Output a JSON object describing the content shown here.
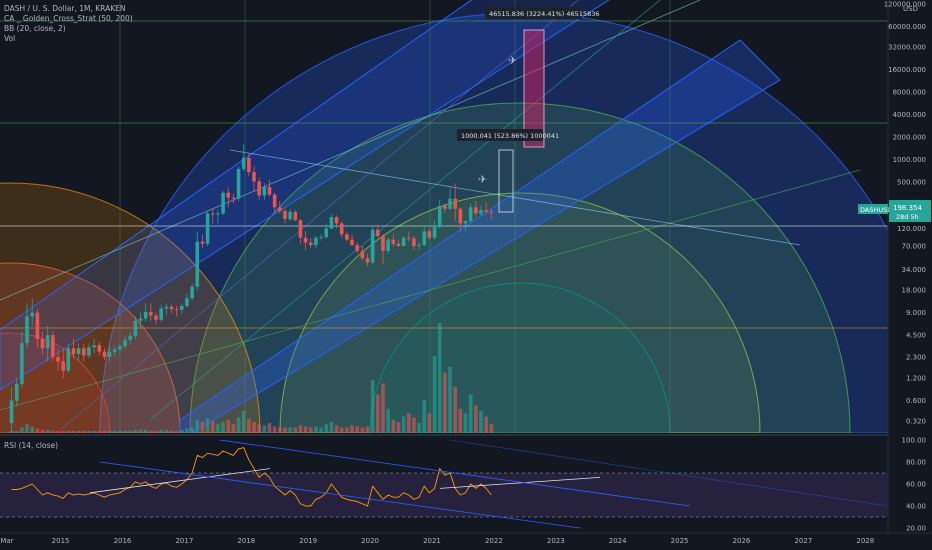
{
  "legend": {
    "symbol": "DASH / U. S. Dollar, 1M, KRAKEN",
    "indicator1": "CA _ Golden_Cross_Strat (50, 200)",
    "indicator2": "BB (20, close, 2)",
    "indicator3": "Vol",
    "rsi": "RSI (14, close)"
  },
  "currency_label": "USD",
  "price_tag": {
    "symbol": "DASHUSD",
    "price": "198.354",
    "countdown": "28d 5h"
  },
  "annotations": {
    "target1": "1000.041 (523.86%) 1000041",
    "target2": "46515.836 (3224.41%) 46515836"
  },
  "colors": {
    "background": "#131722",
    "up": "#26a69a",
    "down": "#ef5350",
    "fib_blue": "#2962ff",
    "fib_green": "#4caf50",
    "fib_orange": "#ff9800",
    "rsi_band": "#7e57c2",
    "target_box": "#e91e63"
  },
  "chart_data": {
    "type": "candlestick",
    "scale": "log",
    "y_ticks": [
      "120000.000",
      "60000.000",
      "32000.000",
      "16000.000",
      "8000.000",
      "4000.000",
      "2000.000",
      "1000.000",
      "500.000",
      "250.000",
      "120.000",
      "70.000",
      "34.000",
      "18.000",
      "9.000",
      "4.500",
      "2.300",
      "1.200",
      "0.600",
      "0.320"
    ],
    "x_ticks": [
      "Mar",
      "2015",
      "2016",
      "2017",
      "2018",
      "2019",
      "2020",
      "2021",
      "2022",
      "2023",
      "2024",
      "2025",
      "2026",
      "2027",
      "2028"
    ],
    "rsi_ticks": [
      "100.00",
      "80.00",
      "60.00",
      "40.00",
      "20.00"
    ],
    "ohlc": [
      [
        "2014-03",
        0.3,
        0.9,
        0.2,
        0.6
      ],
      [
        "2014-04",
        0.6,
        1.2,
        0.5,
        1.0
      ],
      [
        "2014-05",
        1.0,
        5.0,
        0.9,
        3.5
      ],
      [
        "2014-06",
        3.5,
        12.0,
        3.0,
        8.0
      ],
      [
        "2014-07",
        8.0,
        14.0,
        6.0,
        9.0
      ],
      [
        "2014-08",
        9.0,
        10.0,
        3.0,
        4.0
      ],
      [
        "2014-09",
        4.0,
        5.0,
        2.5,
        3.0
      ],
      [
        "2014-10",
        3.0,
        6.0,
        2.0,
        4.5
      ],
      [
        "2014-11",
        4.5,
        5.0,
        2.0,
        2.3
      ],
      [
        "2014-12",
        2.3,
        3.0,
        1.5,
        2.0
      ],
      [
        "2015-01",
        2.0,
        3.0,
        1.2,
        1.5
      ],
      [
        "2015-02",
        1.5,
        3.5,
        1.4,
        3.0
      ],
      [
        "2015-03",
        3.0,
        4.0,
        2.2,
        2.5
      ],
      [
        "2015-04",
        2.5,
        3.5,
        2.0,
        3.0
      ],
      [
        "2015-05",
        3.0,
        3.4,
        2.0,
        2.4
      ],
      [
        "2015-06",
        2.4,
        3.5,
        2.2,
        3.1
      ],
      [
        "2015-07",
        3.1,
        4.0,
        2.6,
        3.3
      ],
      [
        "2015-08",
        3.3,
        3.6,
        2.4,
        2.7
      ],
      [
        "2015-09",
        2.7,
        3.0,
        2.1,
        2.3
      ],
      [
        "2015-10",
        2.3,
        3.2,
        2.0,
        2.7
      ],
      [
        "2015-11",
        2.7,
        3.3,
        2.3,
        2.9
      ],
      [
        "2015-12",
        2.9,
        3.5,
        2.6,
        3.2
      ],
      [
        "2016-01",
        3.2,
        4.3,
        2.9,
        3.9
      ],
      [
        "2016-02",
        3.9,
        5.0,
        3.3,
        4.4
      ],
      [
        "2016-03",
        4.4,
        8.0,
        4.0,
        7.0
      ],
      [
        "2016-04",
        7.0,
        9.0,
        5.5,
        7.5
      ],
      [
        "2016-05",
        7.5,
        12.0,
        6.8,
        9.2
      ],
      [
        "2016-06",
        9.2,
        12.0,
        7.0,
        8.2
      ],
      [
        "2016-07",
        8.2,
        9.0,
        6.2,
        7.2
      ],
      [
        "2016-08",
        7.2,
        11.5,
        6.8,
        10.2
      ],
      [
        "2016-09",
        10.2,
        12.0,
        8.4,
        10.8
      ],
      [
        "2016-10",
        10.8,
        11.5,
        8.8,
        10.0
      ],
      [
        "2016-11",
        10.0,
        11.0,
        8.0,
        9.8
      ],
      [
        "2016-12",
        9.8,
        12.0,
        8.6,
        11.0
      ],
      [
        "2017-01",
        11.0,
        16.0,
        10.5,
        14.0
      ],
      [
        "2017-02",
        14.0,
        22.0,
        13.0,
        20.0
      ],
      [
        "2017-03",
        20.0,
        110.0,
        18.0,
        80.0
      ],
      [
        "2017-04",
        80.0,
        100.0,
        65.0,
        75.0
      ],
      [
        "2017-05",
        75.0,
        200.0,
        70.0,
        190.0
      ],
      [
        "2017-06",
        190.0,
        220.0,
        140.0,
        185.0
      ],
      [
        "2017-07",
        185.0,
        210.0,
        140.0,
        190.0
      ],
      [
        "2017-08",
        190.0,
        380.0,
        180.0,
        360.0
      ],
      [
        "2017-09",
        360.0,
        420.0,
        230.0,
        310.0
      ],
      [
        "2017-10",
        310.0,
        350.0,
        260.0,
        300.0
      ],
      [
        "2017-11",
        300.0,
        800.0,
        280.0,
        750.0
      ],
      [
        "2017-12",
        750.0,
        1600.0,
        700.0,
        1050.0
      ],
      [
        "2018-01",
        1050.0,
        1200.0,
        600.0,
        680.0
      ],
      [
        "2018-02",
        680.0,
        800.0,
        380.0,
        510.0
      ],
      [
        "2018-03",
        510.0,
        580.0,
        290.0,
        330.0
      ],
      [
        "2018-04",
        330.0,
        480.0,
        290.0,
        430.0
      ],
      [
        "2018-05",
        430.0,
        540.0,
        320.0,
        340.0
      ],
      [
        "2018-06",
        340.0,
        360.0,
        200.0,
        230.0
      ],
      [
        "2018-07",
        230.0,
        280.0,
        190.0,
        205.0
      ],
      [
        "2018-08",
        205.0,
        220.0,
        140.0,
        160.0
      ],
      [
        "2018-09",
        160.0,
        220.0,
        150.0,
        200.0
      ],
      [
        "2018-10",
        200.0,
        210.0,
        150.0,
        155.0
      ],
      [
        "2018-11",
        155.0,
        160.0,
        75.0,
        90.0
      ],
      [
        "2018-12",
        90.0,
        110.0,
        60.0,
        78.0
      ],
      [
        "2019-01",
        78.0,
        90.0,
        65.0,
        72.0
      ],
      [
        "2019-02",
        72.0,
        95.0,
        65.0,
        90.0
      ],
      [
        "2019-03",
        90.0,
        100.0,
        82.0,
        92.0
      ],
      [
        "2019-04",
        92.0,
        140.0,
        88.0,
        120.0
      ],
      [
        "2019-05",
        120.0,
        185.0,
        115.0,
        170.0
      ],
      [
        "2019-06",
        170.0,
        180.0,
        120.0,
        140.0
      ],
      [
        "2019-07",
        140.0,
        150.0,
        90.0,
        100.0
      ],
      [
        "2019-08",
        100.0,
        110.0,
        80.0,
        85.0
      ],
      [
        "2019-09",
        85.0,
        100.0,
        70.0,
        72.0
      ],
      [
        "2019-10",
        72.0,
        80.0,
        55.0,
        60.0
      ],
      [
        "2019-11",
        60.0,
        70.0,
        45.0,
        48.0
      ],
      [
        "2019-12",
        48.0,
        55.0,
        38.0,
        42.0
      ],
      [
        "2020-01",
        42.0,
        130.0,
        40.0,
        115.0
      ],
      [
        "2020-02",
        115.0,
        135.0,
        90.0,
        95.0
      ],
      [
        "2020-03",
        95.0,
        100.0,
        40.0,
        60.0
      ],
      [
        "2020-04",
        60.0,
        90.0,
        55.0,
        85.0
      ],
      [
        "2020-05",
        85.0,
        100.0,
        68.0,
        75.0
      ],
      [
        "2020-06",
        75.0,
        85.0,
        68.0,
        70.0
      ],
      [
        "2020-07",
        70.0,
        95.0,
        68.0,
        90.0
      ],
      [
        "2020-08",
        90.0,
        110.0,
        80.0,
        88.0
      ],
      [
        "2020-09",
        88.0,
        95.0,
        62.0,
        70.0
      ],
      [
        "2020-10",
        70.0,
        80.0,
        62.0,
        72.0
      ],
      [
        "2020-11",
        72.0,
        130.0,
        70.0,
        110.0
      ],
      [
        "2020-12",
        110.0,
        120.0,
        85.0,
        90.0
      ],
      [
        "2021-01",
        90.0,
        150.0,
        85.0,
        125.0
      ],
      [
        "2021-02",
        125.0,
        290.0,
        120.0,
        240.0
      ],
      [
        "2021-03",
        240.0,
        260.0,
        190.0,
        220.0
      ],
      [
        "2021-04",
        220.0,
        420.0,
        210.0,
        300.0
      ],
      [
        "2021-05",
        300.0,
        480.0,
        150.0,
        220.0
      ],
      [
        "2021-06",
        220.0,
        230.0,
        110.0,
        140.0
      ],
      [
        "2021-07",
        140.0,
        155.0,
        110.0,
        150.0
      ],
      [
        "2021-08",
        150.0,
        260.0,
        145.0,
        230.0
      ],
      [
        "2021-09",
        230.0,
        280.0,
        170.0,
        190.0
      ],
      [
        "2021-10",
        190.0,
        240.0,
        175.0,
        210.0
      ],
      [
        "2021-11",
        210.0,
        270.0,
        190.0,
        200.0
      ],
      [
        "2021-12",
        200.0,
        215.0,
        160.0,
        198.354
      ]
    ],
    "volume_relative": [
      0.02,
      0.02,
      0.05,
      0.08,
      0.06,
      0.04,
      0.03,
      0.03,
      0.02,
      0.02,
      0.02,
      0.02,
      0.02,
      0.02,
      0.02,
      0.02,
      0.02,
      0.02,
      0.02,
      0.02,
      0.02,
      0.02,
      0.02,
      0.02,
      0.03,
      0.03,
      0.03,
      0.02,
      0.02,
      0.03,
      0.03,
      0.02,
      0.02,
      0.03,
      0.04,
      0.05,
      0.12,
      0.1,
      0.13,
      0.11,
      0.08,
      0.1,
      0.12,
      0.08,
      0.14,
      0.2,
      0.13,
      0.1,
      0.08,
      0.07,
      0.09,
      0.06,
      0.05,
      0.05,
      0.05,
      0.05,
      0.07,
      0.06,
      0.05,
      0.06,
      0.05,
      0.08,
      0.1,
      0.07,
      0.05,
      0.05,
      0.07,
      0.06,
      0.05,
      0.06,
      0.48,
      0.35,
      0.45,
      0.22,
      0.12,
      0.1,
      0.15,
      0.18,
      0.14,
      0.09,
      0.3,
      0.18,
      0.7,
      1.0,
      0.55,
      0.6,
      0.42,
      0.22,
      0.18,
      0.35,
      0.25,
      0.2,
      0.15,
      0.08
    ],
    "rsi_values": [
      55,
      55,
      56,
      58,
      60,
      55,
      50,
      52,
      50,
      49,
      47,
      52,
      50,
      51,
      50,
      51,
      52,
      50,
      48,
      50,
      51,
      52,
      55,
      57,
      62,
      60,
      62,
      58,
      56,
      60,
      61,
      58,
      57,
      60,
      64,
      70,
      86,
      84,
      88,
      87,
      86,
      90,
      88,
      86,
      92,
      93,
      82,
      74,
      66,
      70,
      66,
      58,
      54,
      50,
      54,
      50,
      42,
      40,
      40,
      46,
      48,
      52,
      60,
      54,
      48,
      46,
      45,
      44,
      42,
      40,
      58,
      52,
      46,
      50,
      48,
      48,
      52,
      50,
      46,
      48,
      58,
      52,
      56,
      74,
      68,
      70,
      56,
      50,
      52,
      60,
      56,
      60,
      56,
      50
    ]
  }
}
